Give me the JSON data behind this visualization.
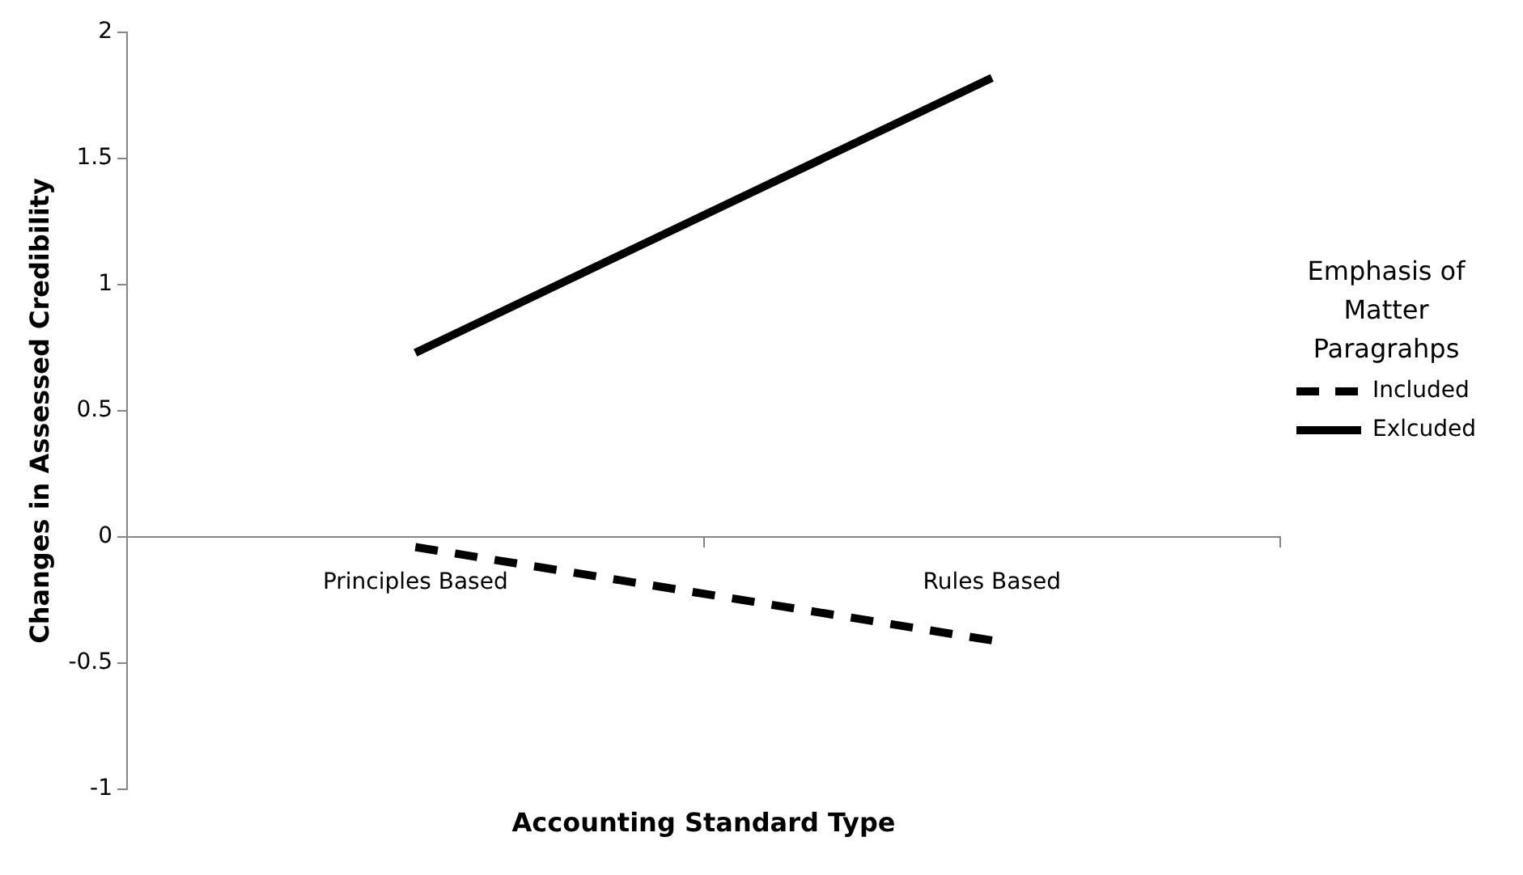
{
  "chart_data": {
    "type": "line",
    "xlabel": "Accounting Standard Type",
    "ylabel": "Changes in Assessed Credibility",
    "legend_title": "Emphasis of Matter Paragrahps",
    "categories": [
      "Principles Based",
      "Rules Based"
    ],
    "series": [
      {
        "name": "Included",
        "color": "#000000",
        "values": [
          -0.04,
          -0.41
        ],
        "line_style": "dashed"
      },
      {
        "name": "Exlcuded",
        "color": "#000000",
        "values": [
          0.73,
          1.82
        ],
        "line_style": "solid"
      }
    ],
    "ylim": [
      -1,
      2
    ],
    "yticks": [
      -1,
      -0.5,
      0,
      0.5,
      1,
      1.5,
      2
    ],
    "grid": false,
    "legend": "right",
    "marker": "none"
  }
}
